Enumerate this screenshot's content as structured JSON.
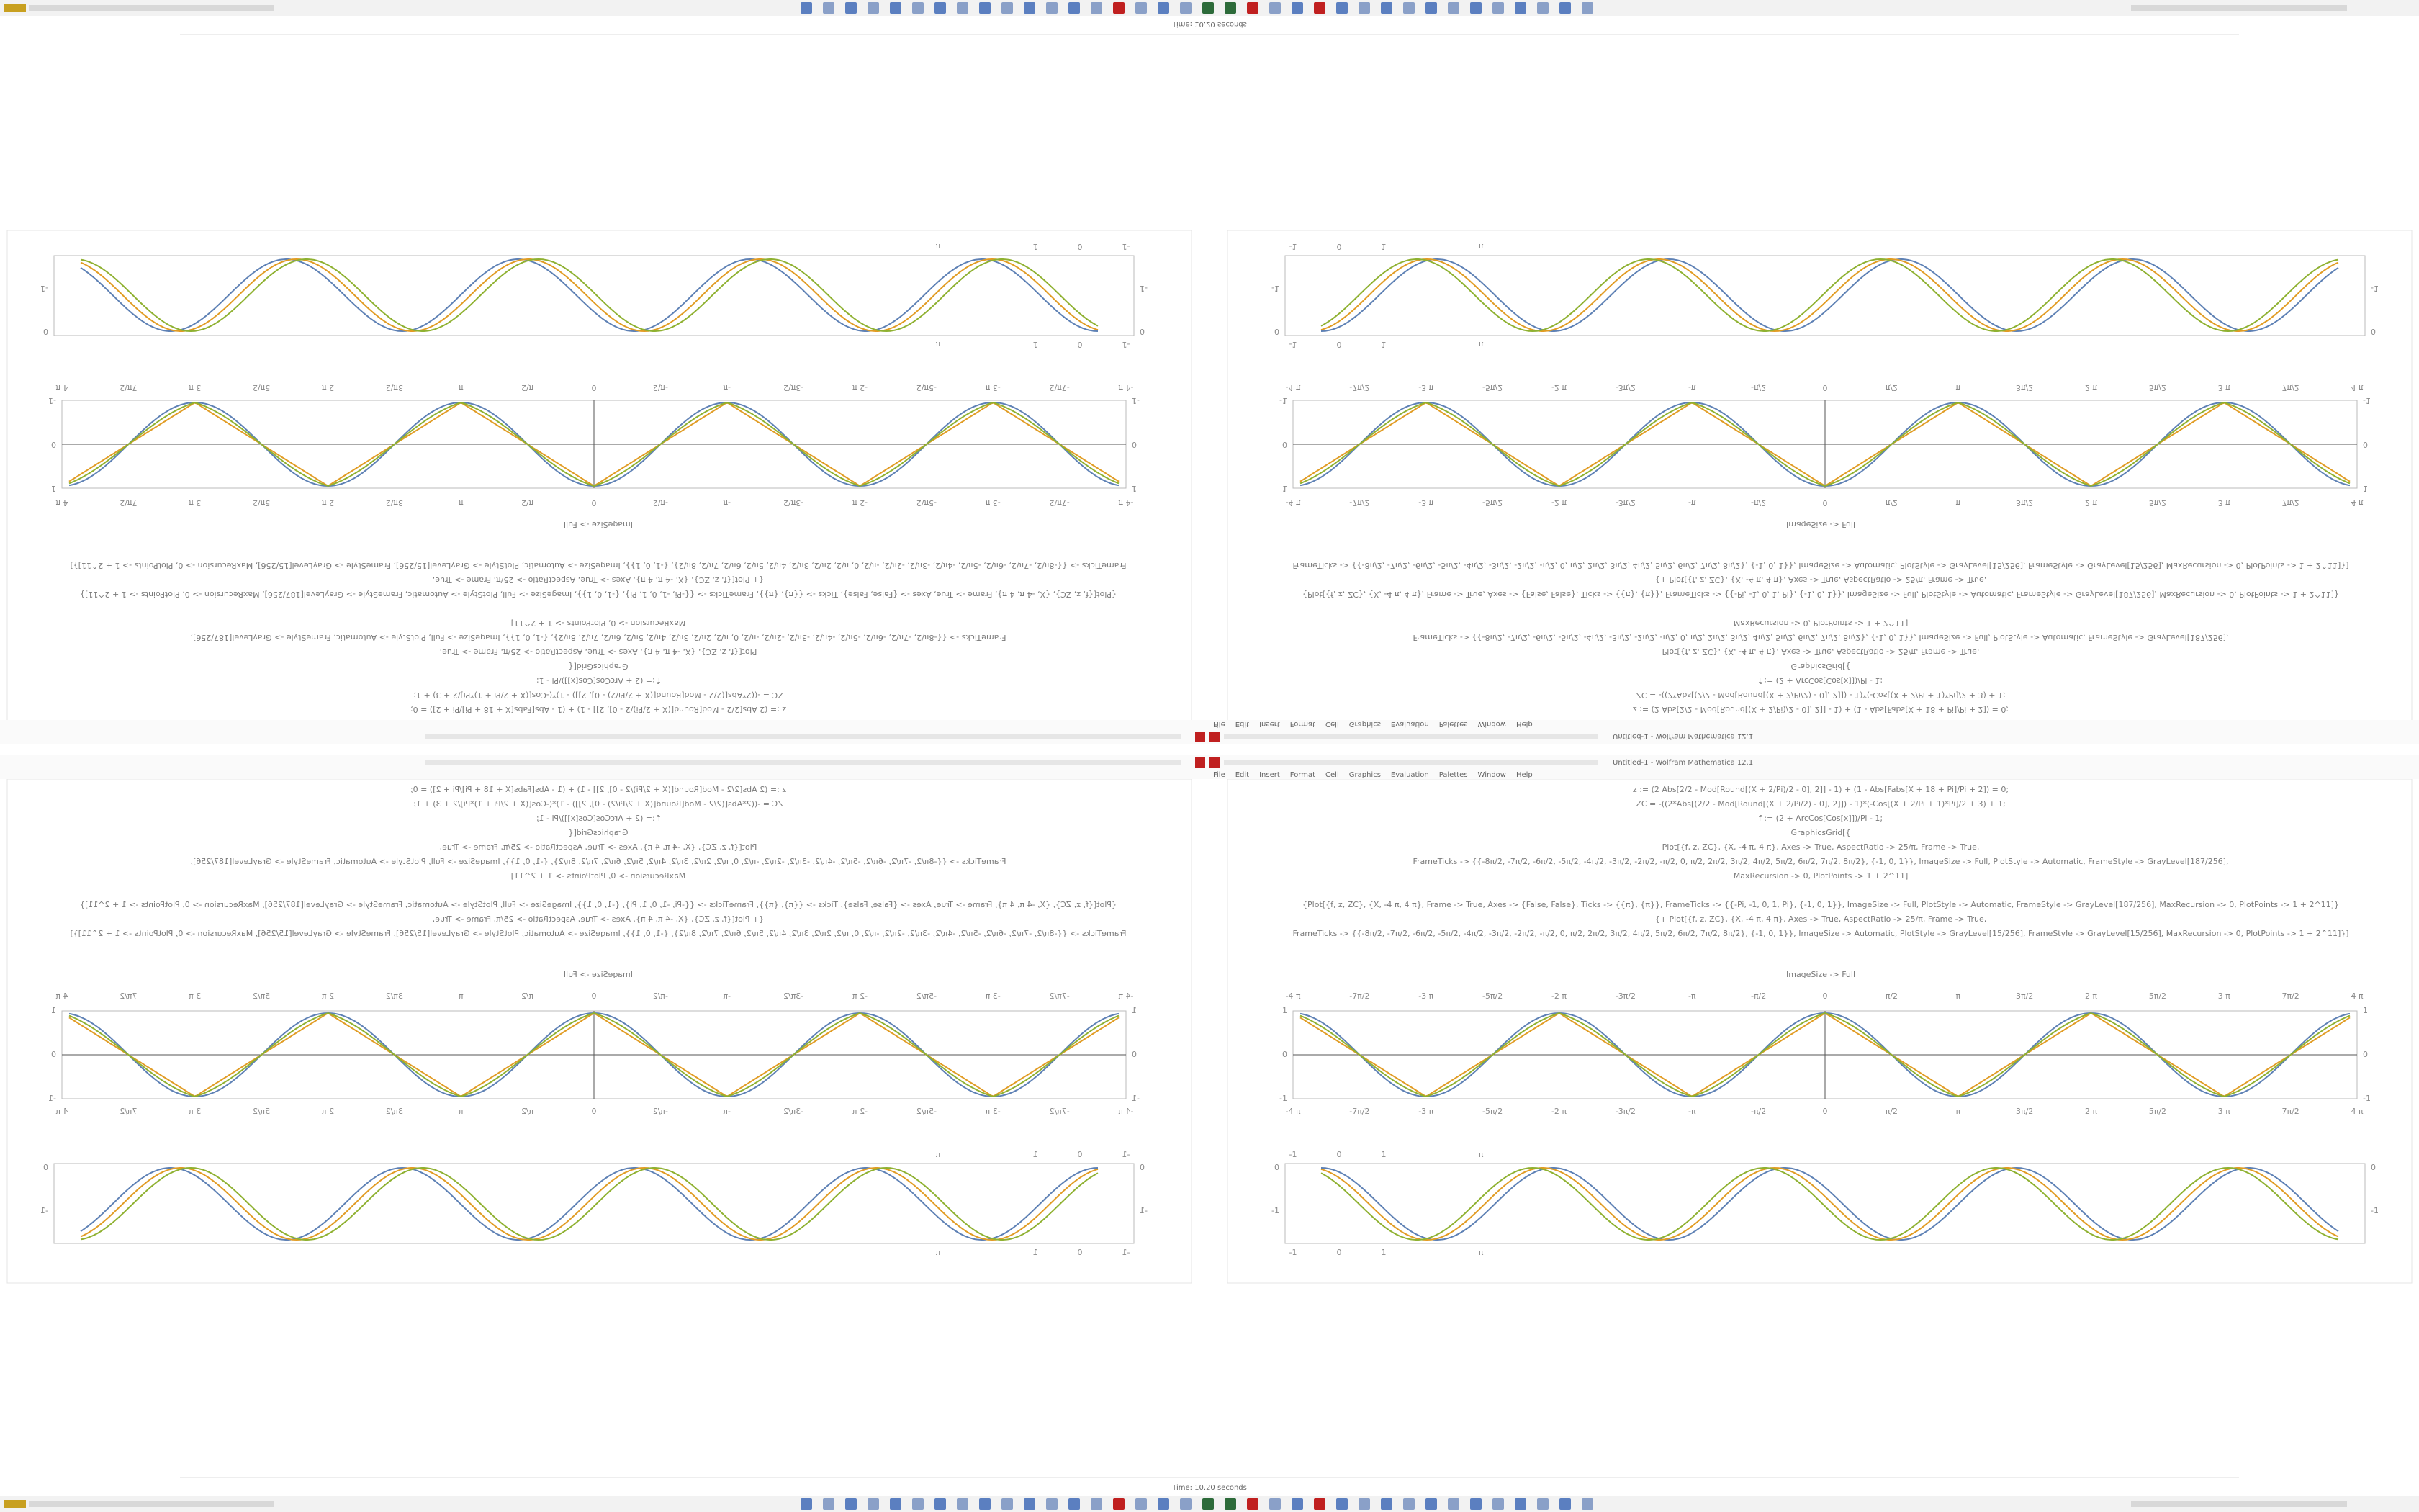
{
  "window": {
    "status": "Time: 10.20 seconds",
    "app_title": "Untitled-1 - Wolfram Mathematica 12.1"
  },
  "menu": [
    "File",
    "Edit",
    "Insert",
    "Format",
    "Cell",
    "Graphics",
    "Evaluation",
    "Palettes",
    "Window",
    "Help"
  ],
  "notebook": {
    "code": [
      "z := (2 Abs[2/2 - Mod[Round[(X + 2/Pi)/2 - 0], 2]] - 1) + (1 - Abs[Fabs[X + 18 + Pi]/Pi + 2]) = 0;",
      "ZC = -((2*Abs[(2/2 - Mod[Round[(X + 2/Pi/2) - 0], 2]]) - 1)*(-Cos[(X + 2/Pi + 1)*Pi]/2 + 3) + 1;",
      "f := (2 + ArcCos[Cos[x]])/Pi - 1;",
      "GraphicsGrid[{",
      "Plot[{f, z, ZC}, {X, -4 π, 4 π}, Axes -> True, AspectRatio -> 25/π, Frame -> True,",
      "FrameTicks -> {{-8π/2, -7π/2, -6π/2, -5π/2, -4π/2, -3π/2, -2π/2, -π/2, 0, π/2, 2π/2, 3π/2, 4π/2, 5π/2, 6π/2, 7π/2, 8π/2}, {-1, 0, 1}}, ImageSize -> Full, PlotStyle -> Automatic, FrameStyle -> GrayLevel[187/256],",
      "MaxRecursion -> 0, PlotPoints -> 1 + 2^11]",
      "{Plot[{f, z, ZC}, {X, -4 π, 4 π}, Frame -> True, Axes -> {False, False}, Ticks -> {{π}, {π}}, FrameTicks -> {{-Pi, -1, 0, 1, Pi}, {-1, 0, 1}}, ImageSize -> Full, PlotStyle -> Automatic, FrameStyle -> GrayLevel[187/256], MaxRecursion -> 0, PlotPoints -> 1 + 2^11]}",
      "{+ Plot[{f, z, ZC}, {X, -4 π, 4 π}, Axes -> True, AspectRatio -> 25/π, Frame -> True,",
      "FrameTicks -> {{-8π/2, -7π/2, -6π/2, -5π/2, -4π/2, -3π/2, -2π/2, -π/2, 0, π/2, 2π/2, 3π/2, 4π/2, 5π/2, 6π/2, 7π/2, 8π/2}, {-1, 0, 1}}, ImageSize -> Automatic, PlotStyle -> GrayLevel[15/256], FrameStyle -> GrayLevel[15/256], MaxRecursion -> 0, PlotPoints -> 1 + 2^11]}]"
    ],
    "image_size": "ImageSize -> Full",
    "plot1": {
      "x_ticks": [
        "-4 π",
        "-7π/2",
        "-3 π",
        "-5π/2",
        "-2 π",
        "-3π/2",
        "-π",
        "-π/2",
        "0",
        "π/2",
        "π",
        "3π/2",
        "2 π",
        "5π/2",
        "3 π",
        "7π/2",
        "4 π"
      ],
      "y_ticks": [
        "1",
        "0",
        "-1"
      ]
    },
    "plot2": {
      "x_ticks": [
        "-1",
        "0",
        "1",
        "π"
      ],
      "y_ticks": [
        "0",
        "-1"
      ]
    }
  }
}
